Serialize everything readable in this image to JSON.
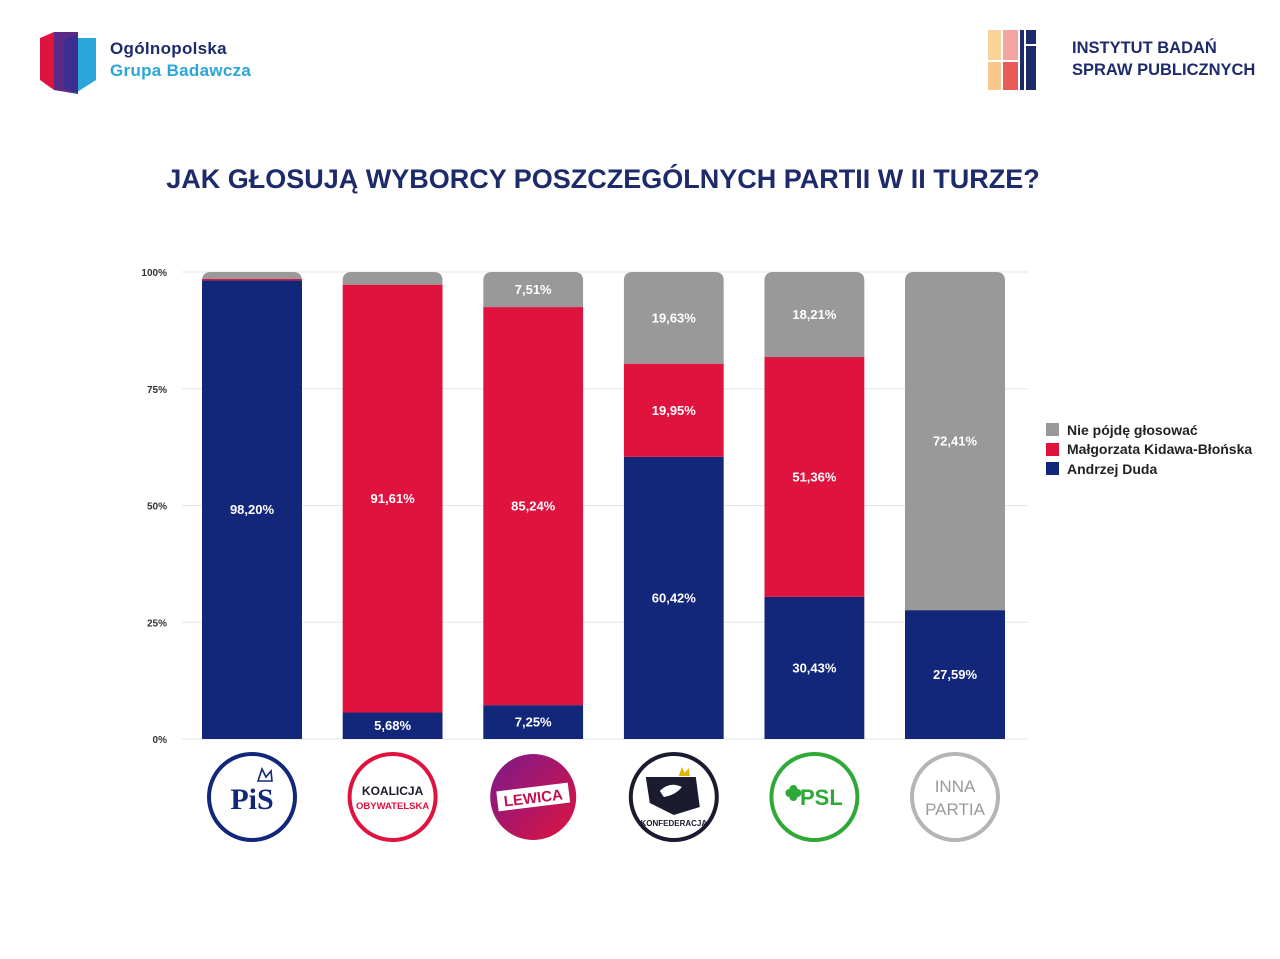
{
  "header": {
    "left_logo_line1": "Ogólnopolska",
    "left_logo_line2": "Grupa Badawcza",
    "right_logo_line1": "INSTYTUT BADAŃ",
    "right_logo_line2": "SPRAW PUBLICZNYCH"
  },
  "colors": {
    "navy": "#13277a",
    "red": "#e0133f",
    "gray": "#999999",
    "title": "#1d2b6b"
  },
  "chart_data": {
    "type": "bar",
    "stacked": true,
    "title": "JAK GŁOSUJĄ WYBORCY POSZCZEGÓLNYCH PARTII W II TURZE?",
    "ylim": [
      0,
      100
    ],
    "yticks": [
      "0%",
      "25%",
      "50%",
      "75%",
      "100%"
    ],
    "categories": [
      "PiS",
      "KOALICJA OBYWATELSKA",
      "LEWICA",
      "KONFEDERACJA",
      "PSL",
      "INNA PARTIA"
    ],
    "category_logos": [
      {
        "text": "PiS",
        "color": "#13277a"
      },
      {
        "text": "KOALICJA OBYWATELSKA",
        "color": "#e0133f"
      },
      {
        "text": "LEWICA",
        "color": "#ffffff"
      },
      {
        "text": "KONFEDERACJA",
        "color": "#1b1b2f"
      },
      {
        "text": "PSL",
        "color": "#2ea836"
      },
      {
        "text": "INNA PARTIA",
        "color": "#9a9a9a"
      }
    ],
    "series": [
      {
        "name": "Andrzej Duda",
        "color": "#13277a",
        "values": [
          98.2,
          5.68,
          7.25,
          60.42,
          30.43,
          27.59
        ],
        "labels": [
          "98,20%",
          "5,68%",
          "7,25%",
          "60,42%",
          "30,43%",
          "27,59%"
        ]
      },
      {
        "name": "Małgorzata Kidawa-Błońska",
        "color": "#e0133f",
        "values": [
          0.3,
          91.61,
          85.24,
          19.95,
          51.36,
          0
        ],
        "labels": [
          "",
          "91,61%",
          "85,24%",
          "19,95%",
          "51,36%",
          ""
        ]
      },
      {
        "name": "Nie pójdę głosować",
        "color": "#999999",
        "values": [
          1.5,
          2.71,
          7.51,
          19.63,
          18.21,
          72.41
        ],
        "labels": [
          "",
          "",
          "7,51%",
          "19,63%",
          "18,21%",
          "72,41%"
        ]
      }
    ],
    "legend": [
      {
        "name": "Nie pójdę głosować",
        "color": "#999999"
      },
      {
        "name": "Małgorzata Kidawa-Błońska",
        "color": "#e0133f"
      },
      {
        "name": "Andrzej Duda",
        "color": "#13277a"
      }
    ],
    "legend_position": "right"
  }
}
